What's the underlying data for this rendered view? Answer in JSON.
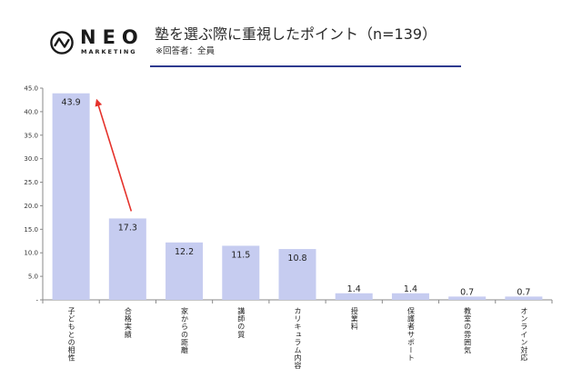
{
  "logo": {
    "name": "NEO",
    "sub": "MARKETING",
    "icon": "pulse-circle-icon"
  },
  "colors": {
    "bar": "#c6ccf0",
    "arrow": "#e5322b",
    "underline": "#2e3b8f",
    "axis": "#8a8a8a",
    "logo": "#1a1a1a"
  },
  "chart_data": {
    "type": "bar",
    "title": "塾を選ぶ際に重視したポイント（n=139）",
    "subtitle": "※回答者：全員",
    "categories": [
      "子どもとの相性",
      "合格実績",
      "家からの距離",
      "講師の質",
      "カリキュラム内容",
      "授業料",
      "保護者サポート",
      "教室の雰囲気",
      "オンライン対応"
    ],
    "values": [
      43.9,
      17.3,
      12.2,
      11.5,
      10.8,
      1.4,
      1.4,
      0.7,
      0.7
    ],
    "ylim": [
      0,
      45
    ],
    "yticks": [
      0,
      5,
      10,
      15,
      20,
      25,
      30,
      35,
      40,
      45
    ],
    "ytick_labels": [
      "-",
      "5.0",
      "10.0",
      "15.0",
      "20.0",
      "25.0",
      "30.0",
      "35.0",
      "40.0",
      "45.0"
    ],
    "grid": false,
    "annotations": [
      {
        "type": "arrow",
        "from": 1,
        "to": 0
      }
    ]
  }
}
